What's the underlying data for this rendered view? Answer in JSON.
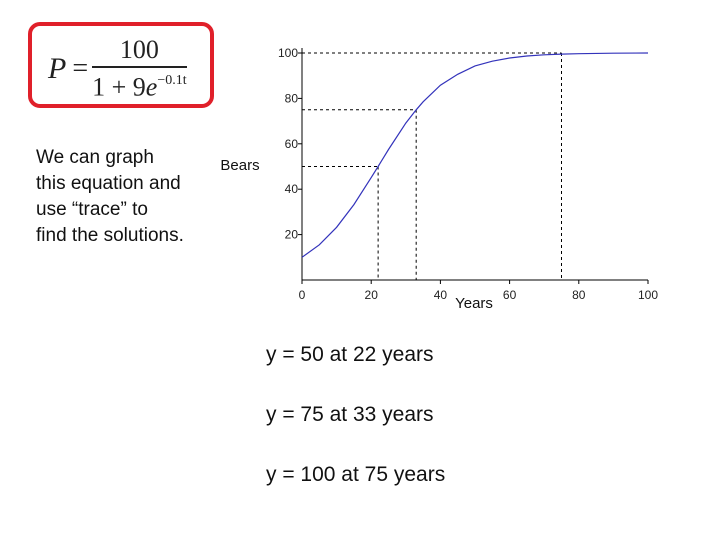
{
  "formula": {
    "lhs": "P",
    "equals": "=",
    "numerator": "100",
    "den_constant": "1 + 9",
    "den_base": "e",
    "den_exponent": "−0.1t"
  },
  "note_lines": [
    "We can graph",
    "this equation and",
    "use “trace” to",
    "find the solutions."
  ],
  "results": [
    "y = 50 at 22 years",
    "y = 75 at 33 years",
    "y = 100 at 75 years"
  ],
  "colors": {
    "formula_border": "#e0202a",
    "curve": "#3333bb",
    "guides": "#000000",
    "text": "#111111"
  },
  "chart_data": {
    "type": "line",
    "xlabel": "Years",
    "ylabel": "Bears",
    "xlim": [
      0,
      100
    ],
    "ylim": [
      0,
      100
    ],
    "x_ticks": [
      "0",
      "20",
      "40",
      "60",
      "80",
      "100"
    ],
    "y_ticks": [
      "20",
      "40",
      "60",
      "80",
      "100"
    ],
    "grid": false,
    "series": [
      {
        "x": [
          0,
          5,
          10,
          15,
          20,
          22,
          25,
          30,
          33,
          35,
          40,
          45,
          50,
          55,
          60,
          65,
          70,
          75,
          80,
          90,
          100
        ],
        "y": [
          10.0,
          15.5,
          23.2,
          33.2,
          45.1,
          50.0,
          57.5,
          69.1,
          75.0,
          78.5,
          85.8,
          90.6,
          94.3,
          96.4,
          97.8,
          98.7,
          99.2,
          99.5,
          99.7,
          99.9,
          100.0
        ]
      }
    ],
    "markers": [
      {
        "x": 22,
        "y": 50
      },
      {
        "x": 33,
        "y": 75
      },
      {
        "x": 75,
        "y": 100
      }
    ]
  }
}
